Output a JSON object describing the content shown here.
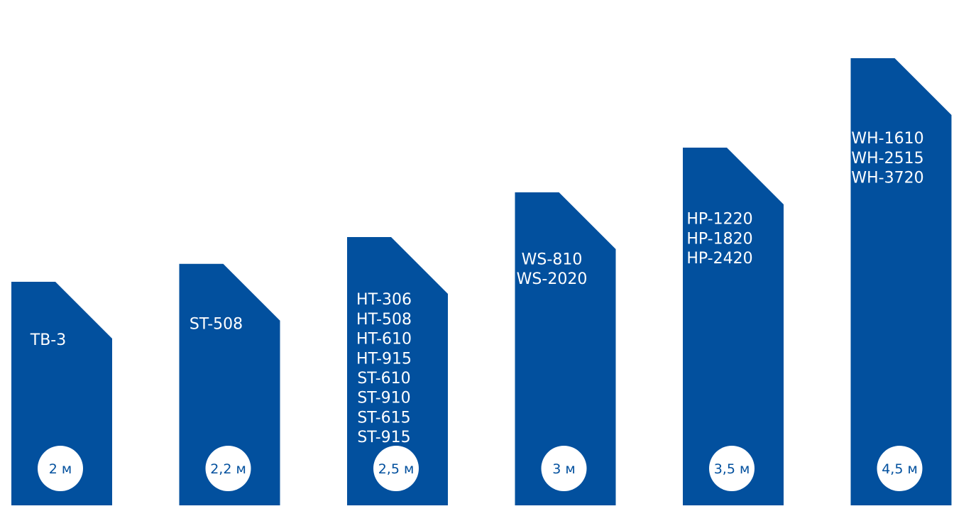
{
  "chart_data": {
    "type": "bar",
    "categories": [
      "2 м",
      "2,2 м",
      "2,5 м",
      "3 м",
      "3,5 м",
      "4,5 м"
    ],
    "values": [
      2,
      2.2,
      2.5,
      3,
      3.5,
      4.5
    ],
    "unit": "м",
    "series": [
      {
        "values": [
          2,
          2.2,
          2.5,
          3,
          3.5,
          4.5
        ]
      }
    ],
    "bar_models": [
      [
        "TB-3"
      ],
      [
        "ST-508"
      ],
      [
        "HT-306",
        "HT-508",
        "HT-610",
        "HT-915",
        "ST-610",
        "ST-910",
        "ST-615",
        "ST-915"
      ],
      [
        "WS-810",
        "WS-2020"
      ],
      [
        "HP-1220",
        "HP-1820",
        "HP-2420"
      ],
      [
        "WH-1610",
        "WH-2515",
        "WH-3720"
      ]
    ],
    "title": "",
    "xlabel": "",
    "ylabel": "",
    "ylim": [
      0,
      4.5
    ],
    "grid": false,
    "legend": "none"
  },
  "colors": {
    "bar": "#02509e",
    "badge_fill": "#ffffff",
    "badge_text": "#02509e",
    "model_text": "#ffffff"
  }
}
